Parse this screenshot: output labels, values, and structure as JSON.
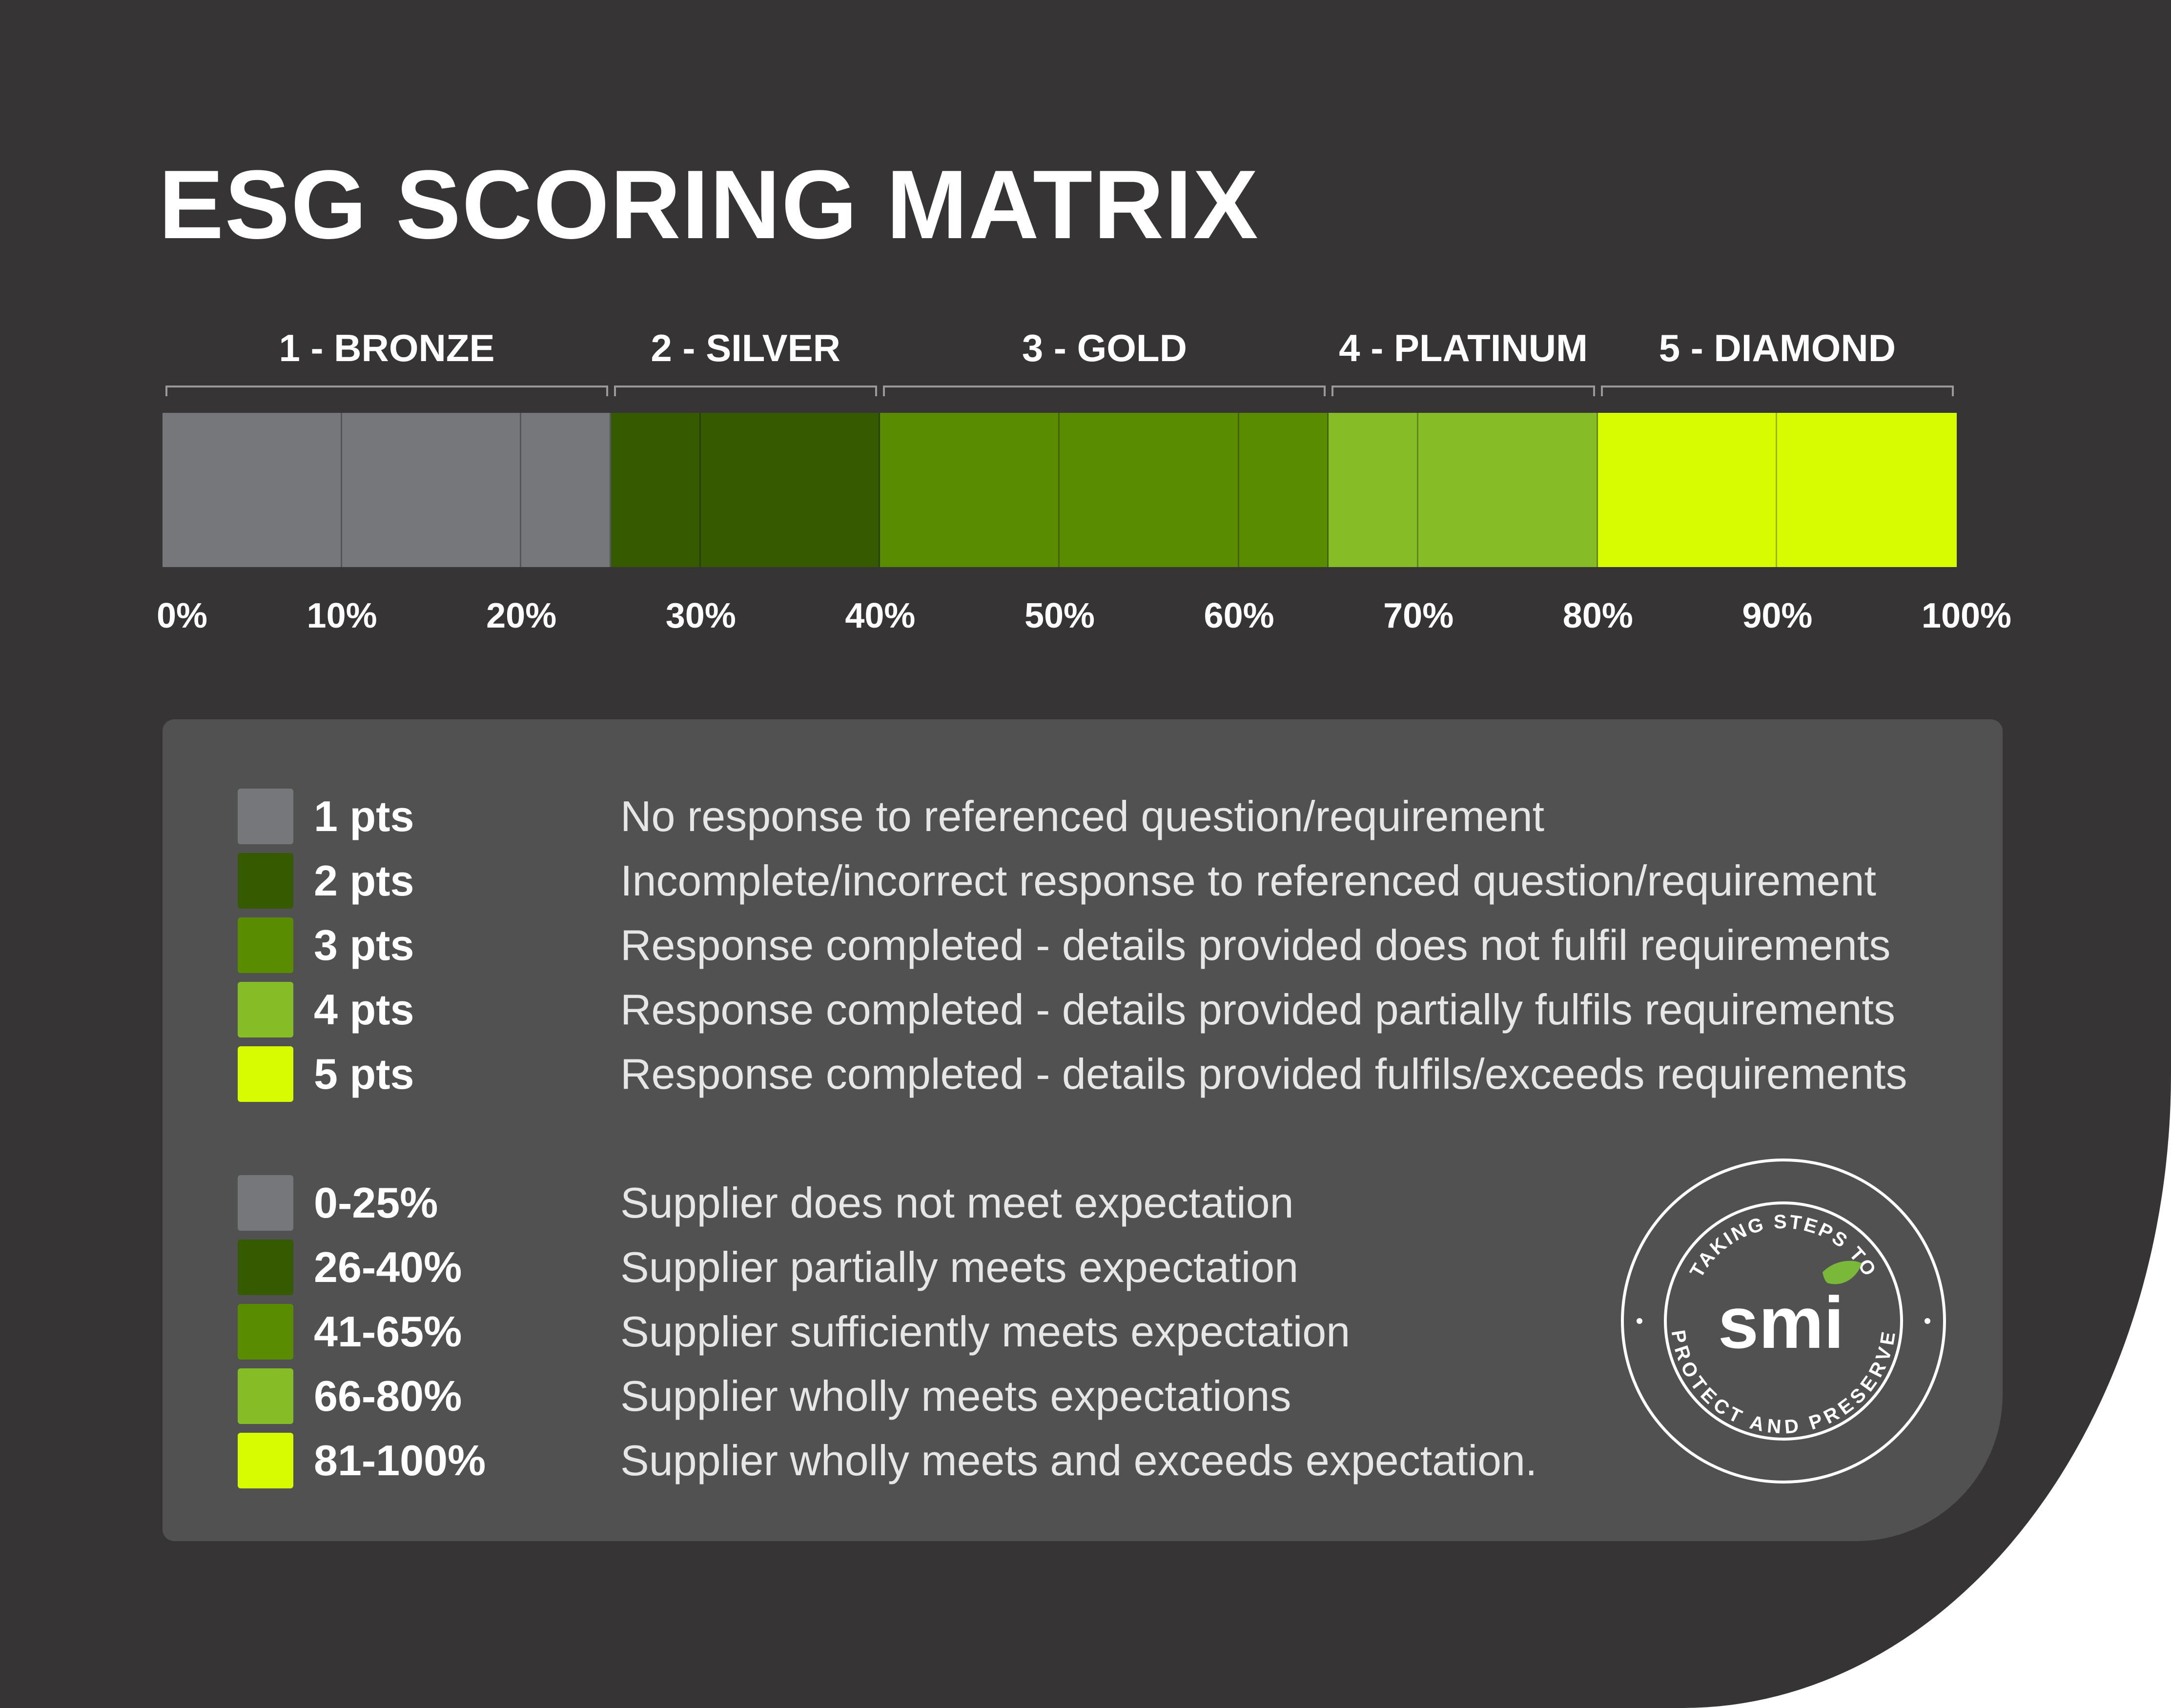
{
  "title": "ESG SCORING MATRIX",
  "tiers": [
    {
      "label": "1 - BRONZE",
      "from": 0,
      "to": 25
    },
    {
      "label": "2 - SILVER",
      "from": 25,
      "to": 40
    },
    {
      "label": "3 - GOLD",
      "from": 40,
      "to": 65
    },
    {
      "label": "4 - PLATINUM",
      "from": 65,
      "to": 80
    },
    {
      "label": "5 - DIAMOND",
      "from": 80,
      "to": 100
    }
  ],
  "scale_segments": [
    {
      "from": 0,
      "to": 10,
      "color": "#76777b"
    },
    {
      "from": 10,
      "to": 20,
      "color": "#76777b"
    },
    {
      "from": 20,
      "to": 25,
      "color": "#76777b"
    },
    {
      "from": 25,
      "to": 30,
      "color": "#365a00"
    },
    {
      "from": 30,
      "to": 40,
      "color": "#365a00"
    },
    {
      "from": 40,
      "to": 50,
      "color": "#5a8c00"
    },
    {
      "from": 50,
      "to": 60,
      "color": "#5a8c00"
    },
    {
      "from": 60,
      "to": 65,
      "color": "#5a8c00"
    },
    {
      "from": 65,
      "to": 70,
      "color": "#86bd27"
    },
    {
      "from": 70,
      "to": 80,
      "color": "#86bd27"
    },
    {
      "from": 80,
      "to": 90,
      "color": "#d7fb00"
    },
    {
      "from": 90,
      "to": 100,
      "color": "#d7fb00"
    }
  ],
  "ticks": [
    {
      "label": "0%",
      "value": 0
    },
    {
      "label": "10%",
      "value": 10
    },
    {
      "label": "20%",
      "value": 20
    },
    {
      "label": "30%",
      "value": 30
    },
    {
      "label": "40%",
      "value": 40
    },
    {
      "label": "50%",
      "value": 50
    },
    {
      "label": "60%",
      "value": 60
    },
    {
      "label": "70%",
      "value": 70
    },
    {
      "label": "80%",
      "value": 80
    },
    {
      "label": "90%",
      "value": 90
    },
    {
      "label": "100%",
      "value": 100
    }
  ],
  "points_legend": [
    {
      "label": "1 pts",
      "text": "No response to referenced question/requirement",
      "color": "#76777b"
    },
    {
      "label": "2 pts",
      "text": "Incomplete/incorrect response to referenced question/requirement",
      "color": "#365a00"
    },
    {
      "label": "3 pts",
      "text": "Response completed - details provided does not fulfil requirements",
      "color": "#5a8c00"
    },
    {
      "label": "4 pts",
      "text": "Response completed - details provided partially fulfils requirements",
      "color": "#86bd27"
    },
    {
      "label": "5 pts",
      "text": "Response completed - details provided fulfils/exceeds requirements",
      "color": "#d7fb00"
    }
  ],
  "percent_legend": [
    {
      "label": "0-25%",
      "text": "Supplier does not meet expectation",
      "color": "#76777b"
    },
    {
      "label": "26-40%",
      "text": "Supplier partially meets expectation",
      "color": "#365a00"
    },
    {
      "label": "41-65%",
      "text": "Supplier sufficiently meets expectation",
      "color": "#5a8c00"
    },
    {
      "label": "66-80%",
      "text": "Supplier wholly meets expectations",
      "color": "#86bd27"
    },
    {
      "label": "81-100%",
      "text": "Supplier wholly meets and exceeds expectation.",
      "color": "#d7fb00"
    }
  ],
  "badge": {
    "top_text": "TAKING STEPS TO",
    "bottom_text": "PROTECT AND PRESERVE",
    "logo_text": "smi",
    "leaf_color": "#7ab83a"
  },
  "colors": {
    "background": "#363435",
    "panel": "#525152"
  }
}
